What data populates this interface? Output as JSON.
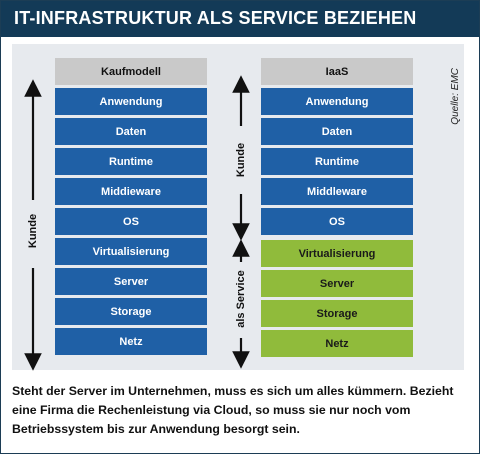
{
  "header": {
    "title": "IT-INFRASTRUKTUR ALS SERVICE BEZIEHEN"
  },
  "source_label": "Quelle: EMC",
  "left_column": {
    "title": "Kaufmodell",
    "side_label": "Kunde",
    "rows": [
      "Anwendung",
      "Daten",
      "Runtime",
      "Middieware",
      "OS",
      "Virtualisierung",
      "Server",
      "Storage",
      "Netz"
    ]
  },
  "right_column": {
    "title": "IaaS",
    "side_label_top": "Kunde",
    "side_label_bottom": "als Service",
    "customer_rows": [
      "Anwendung",
      "Daten",
      "Runtime",
      "Middleware",
      "OS"
    ],
    "service_rows": [
      "Virtualisierung",
      "Server",
      "Storage",
      "Netz"
    ]
  },
  "caption": "Steht der Server im Unternehmen, muss es sich um alles kümmern. Bezieht eine Firma die Rechenleistung via Cloud, so muss sie nur noch vom Betriebssystem bis zur Anwendung besorgt sein.",
  "colors": {
    "header": "#133a57",
    "customer": "#1f60a6",
    "service": "#90bb3b",
    "column_head": "#c9c9c9"
  }
}
